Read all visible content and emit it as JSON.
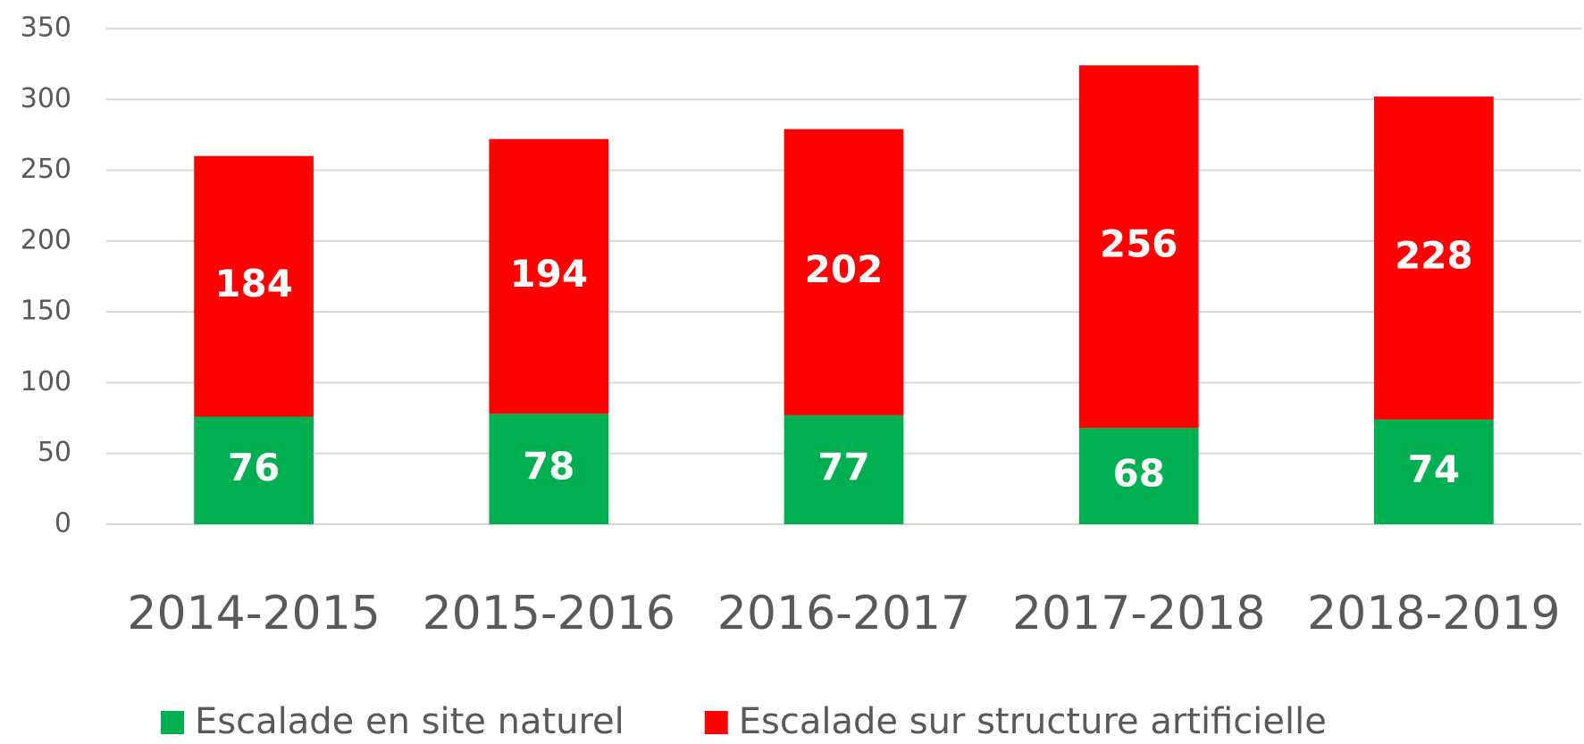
{
  "chart_data": {
    "type": "stacked_bar",
    "categories": [
      "2014-2015",
      "2015-2016",
      "2016-2017",
      "2017-2018",
      "2018-2019"
    ],
    "series": [
      {
        "name": "Escalade en site naturel",
        "color": "#00b050",
        "values": [
          76,
          78,
          77,
          68,
          74
        ]
      },
      {
        "name": "Escalade sur structure artificielle",
        "color": "#ff0000",
        "values": [
          184,
          194,
          202,
          256,
          228
        ]
      }
    ],
    "ylim": [
      0,
      350
    ],
    "yticks": [
      0,
      50,
      100,
      150,
      200,
      250,
      300,
      350
    ],
    "grid": true,
    "legend": "bottom"
  }
}
